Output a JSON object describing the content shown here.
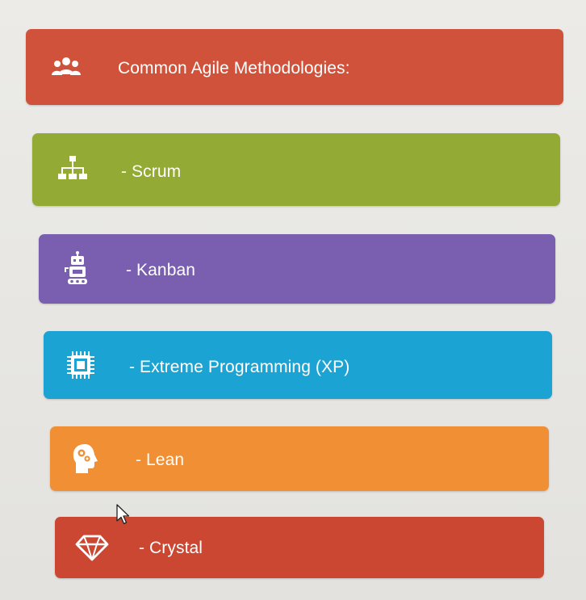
{
  "slide": {
    "title": "Common Agile Methodologies:",
    "title_icon": "team-icon",
    "title_color": "#d1523a",
    "items": [
      {
        "label": "- Scrum",
        "icon": "org-chart-icon",
        "color": "#93aa34"
      },
      {
        "label": "- Kanban",
        "icon": "robot-icon",
        "color": "#7a5fb0"
      },
      {
        "label": "- Extreme Programming (XP)",
        "icon": "cpu-chip-icon",
        "color": "#1ba3d3"
      },
      {
        "label": "- Lean",
        "icon": "head-gears-icon",
        "color": "#f08f33"
      },
      {
        "label": "- Crystal",
        "icon": "diamond-icon",
        "color": "#cc4732"
      }
    ]
  }
}
